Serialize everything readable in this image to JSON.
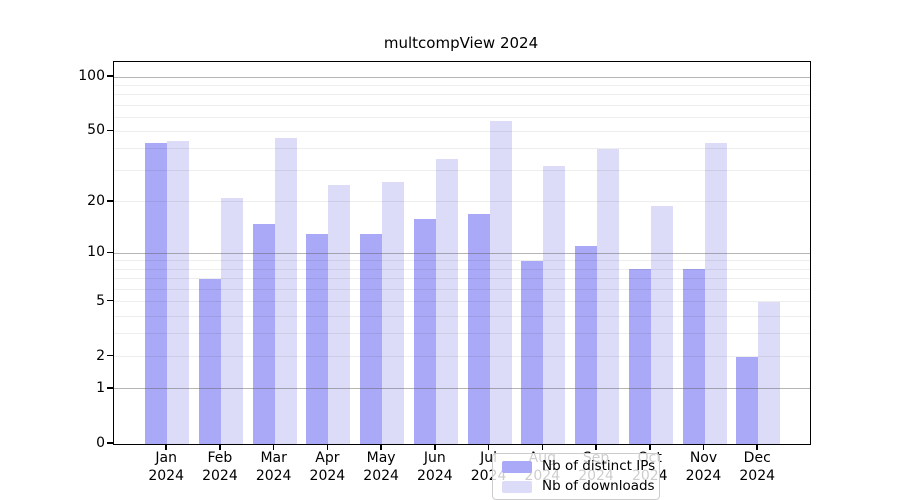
{
  "title": "multcompView 2024",
  "legend": {
    "items": [
      {
        "label": "Nb of distinct IPs",
        "color": "#a9a9f8"
      },
      {
        "label": "Nb of downloads",
        "color": "#dcdcf9"
      }
    ]
  },
  "axis": {
    "year_label": "2024",
    "months": [
      "Jan",
      "Feb",
      "Mar",
      "Apr",
      "May",
      "Jun",
      "Jul",
      "Aug",
      "Sep",
      "Oct",
      "Nov",
      "Dec"
    ]
  },
  "chart_data": {
    "type": "bar",
    "title": "multcompView 2024",
    "scale": "log1p",
    "categories": [
      "Jan 2024",
      "Feb 2024",
      "Mar 2024",
      "Apr 2024",
      "May 2024",
      "Jun 2024",
      "Jul 2024",
      "Aug 2024",
      "Sep 2024",
      "Oct 2024",
      "Nov 2024",
      "Dec 2024"
    ],
    "series": [
      {
        "name": "Nb of distinct IPs",
        "color": "#a9a9f8",
        "values": [
          43,
          7,
          15,
          13,
          13,
          16,
          17,
          9,
          11,
          8,
          8,
          2
        ]
      },
      {
        "name": "Nb of downloads",
        "color": "#dcdcf9",
        "values": [
          44,
          21,
          46,
          25,
          26,
          35,
          57,
          32,
          40,
          19,
          43,
          5
        ]
      }
    ],
    "y_ticks": [
      0,
      1,
      2,
      5,
      10,
      20,
      50,
      100
    ],
    "y_minor_gridlines": [
      2,
      3,
      4,
      5,
      6,
      7,
      8,
      9,
      20,
      30,
      40,
      50,
      60,
      70,
      80,
      90
    ],
    "y_major_gridlines": [
      1,
      10,
      100
    ],
    "ylim": [
      0,
      122
    ],
    "xlabel": "",
    "ylabel": "",
    "grid": "horizontal",
    "legend_position": "lower center inside"
  },
  "colors": {
    "bar_distinct_ips": "#a9a9f8",
    "bar_downloads": "#dcdcf9",
    "grid_minor": "#ececec",
    "grid_major": "#9a9a9a",
    "axis_border": "#000000",
    "background": "#ffffff"
  }
}
